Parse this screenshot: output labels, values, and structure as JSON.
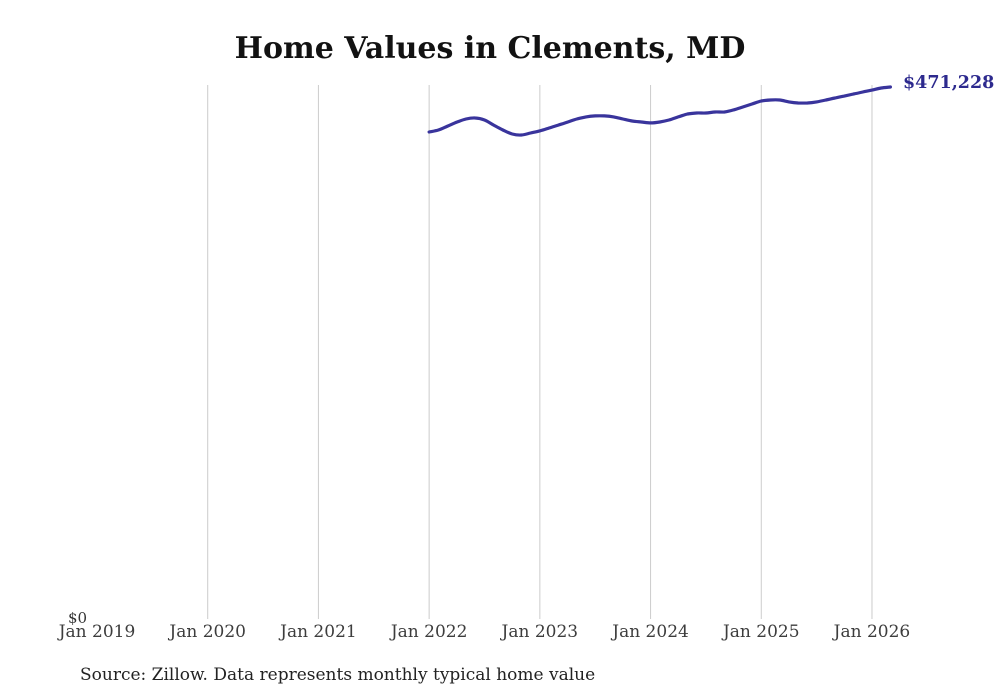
{
  "chart_data": {
    "type": "line",
    "title": "Home Values in Clements, MD",
    "source": "Source: Zillow. Data represents monthly typical home value",
    "y_zero_label": "$0",
    "end_label": "$471,228",
    "latest_value": 471228,
    "ylim": [
      0,
      471228
    ],
    "grid": "vertical-yearly",
    "legend": "none",
    "x_tick_labels": [
      "Jan 2019",
      "Jan 2020",
      "Jan 2021",
      "Jan 2022",
      "Jan 2023",
      "Jan 2024",
      "Jan 2025",
      "Jan 2026"
    ],
    "series": {
      "start": "Jan 2022",
      "end": "Mar 2026",
      "interval": "monthly",
      "values": [
        431400,
        433100,
        436600,
        440100,
        442900,
        443800,
        442000,
        437500,
        433100,
        429600,
        428700,
        430500,
        432300,
        434900,
        437500,
        440100,
        442900,
        444700,
        445600,
        445600,
        444700,
        442900,
        441100,
        440200,
        439400,
        440200,
        442000,
        444700,
        447300,
        448200,
        448200,
        449100,
        449100,
        450900,
        453500,
        456200,
        458800,
        459700,
        459700,
        458000,
        457100,
        457100,
        458000,
        459700,
        461500,
        463200,
        465000,
        466800,
        468500,
        470300,
        471228
      ]
    },
    "colors": {
      "line": "#39349c",
      "end_label": "#2d2a8e",
      "gridline": "#cccccc",
      "title_text": "#121212",
      "tick_text": "#3d3d3d",
      "source_text": "#222222",
      "background": "#ffffff"
    }
  }
}
